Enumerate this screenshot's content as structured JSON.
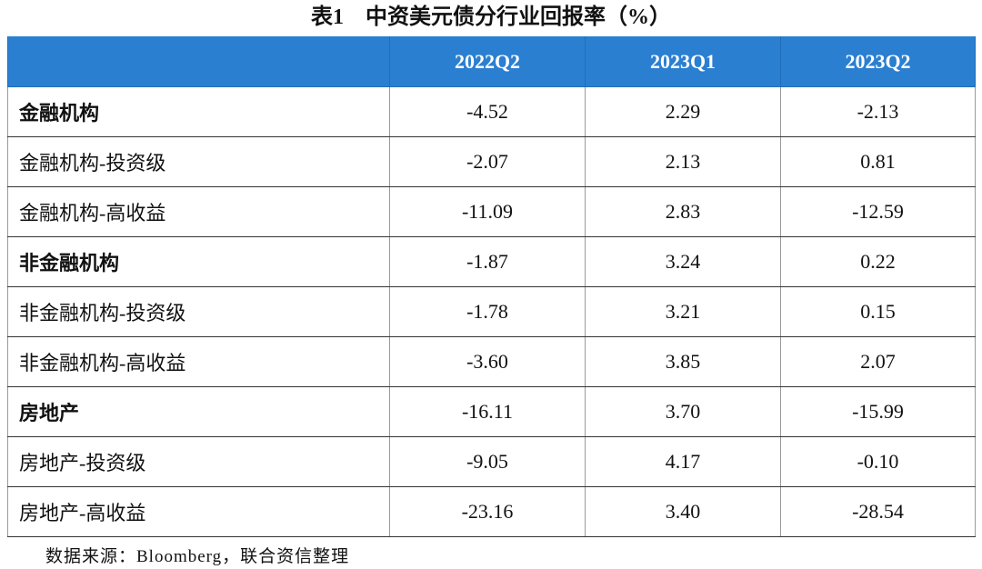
{
  "title": "表1　中资美元债分行业回报率（%）",
  "table": {
    "header": [
      "",
      "2022Q2",
      "2023Q1",
      "2023Q2"
    ],
    "rows": [
      {
        "label": "金融机构",
        "values": [
          "-4.52",
          "2.29",
          "-2.13"
        ]
      },
      {
        "label": "金融机构-投资级",
        "values": [
          "-2.07",
          "2.13",
          "0.81"
        ]
      },
      {
        "label": "金融机构-高收益",
        "values": [
          "-11.09",
          "2.83",
          "-12.59"
        ]
      },
      {
        "label": "非金融机构",
        "values": [
          "-1.87",
          "3.24",
          "0.22"
        ]
      },
      {
        "label": "非金融机构-投资级",
        "values": [
          "-1.78",
          "3.21",
          "0.15"
        ]
      },
      {
        "label": "非金融机构-高收益",
        "values": [
          "-3.60",
          "3.85",
          "2.07"
        ]
      },
      {
        "label": "房地产",
        "values": [
          "-16.11",
          "3.70",
          "-15.99"
        ]
      },
      {
        "label": "房地产-投资级",
        "values": [
          "-9.05",
          "4.17",
          "-0.10"
        ]
      },
      {
        "label": "房地产-高收益",
        "values": [
          "-23.16",
          "3.40",
          "-28.54"
        ]
      }
    ]
  },
  "source": "数据来源：Bloomberg，联合资信整理"
}
